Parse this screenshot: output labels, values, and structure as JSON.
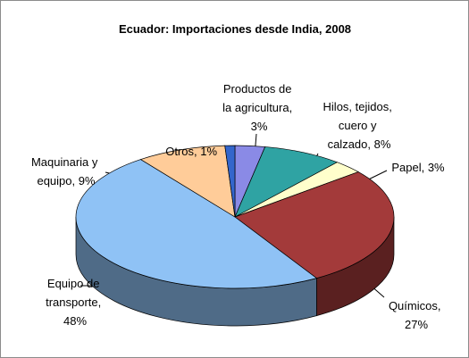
{
  "chart_data": {
    "type": "pie3d",
    "title": "Ecuador: Importaciones desde India, 2008",
    "values": [
      3,
      8,
      3,
      27,
      48,
      9,
      1
    ],
    "value_labels": [
      "Productos de la agricultura, 3%",
      "Hilos, tejidos, cuero y calzado, 8%",
      "Papel, 3%",
      "Químicos, 27%",
      "Equipo de transporte, 48%",
      "Maquinaria y equipo, 9%",
      "Otros, 1%"
    ],
    "colors": [
      "#8a8ae6",
      "#2fa3a3",
      "#ffffcc",
      "#a33a3a",
      "#8fc2f5",
      "#ffcc99",
      "#3366cc"
    ]
  }
}
